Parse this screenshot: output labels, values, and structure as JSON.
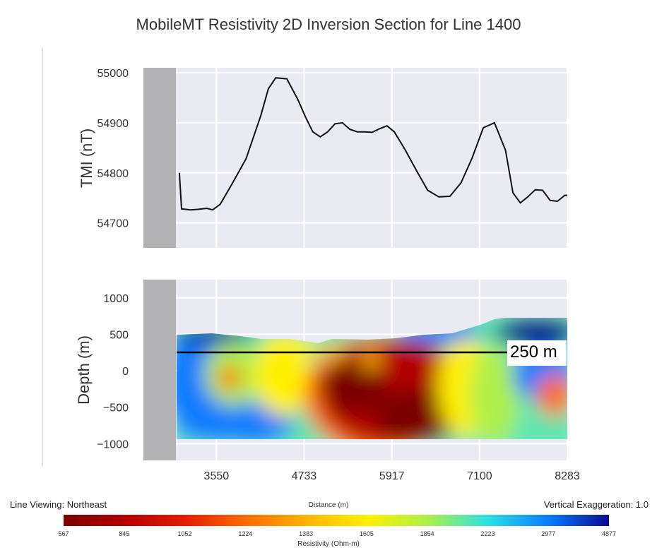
{
  "title": "MobileMT Resistivity 2D Inversion Section for Line 1400",
  "footer": {
    "line_viewing": "Line Viewing: Northeast",
    "distance_label": "Distance (m)",
    "vertical_exaggeration": "Vertical Exaggeration: 1.0"
  },
  "annotation": "250 m",
  "colors": {
    "panel_bg": "#eaeaf2",
    "grid": "#ffffff",
    "gray_block": "#b1b1b4",
    "line": "#111111"
  },
  "chart_data": [
    {
      "type": "line",
      "ylabel": "TMI (nT)",
      "xlabel": "",
      "ylim": [
        54650,
        55010
      ],
      "xlim": [
        2565,
        8283
      ],
      "yticks": [
        55000,
        54900,
        54800,
        54700
      ],
      "grid": true,
      "x": [
        3050,
        3080,
        3200,
        3300,
        3420,
        3500,
        3600,
        3750,
        3950,
        4150,
        4250,
        4350,
        4500,
        4650,
        4750,
        4850,
        4950,
        5050,
        5150,
        5250,
        5350,
        5450,
        5550,
        5650,
        5750,
        5850,
        5950,
        6100,
        6250,
        6400,
        6550,
        6700,
        6850,
        7000,
        7150,
        7300,
        7450,
        7550,
        7650,
        7750,
        7850,
        7950,
        8050,
        8150,
        8250,
        8283
      ],
      "values": [
        54800,
        54728,
        54726,
        54727,
        54729,
        54726,
        54737,
        54775,
        54828,
        54915,
        54968,
        54990,
        54988,
        54946,
        54912,
        54882,
        54872,
        54882,
        54898,
        54900,
        54887,
        54882,
        54882,
        54881,
        54888,
        54894,
        54882,
        54845,
        54804,
        54765,
        54752,
        54753,
        54780,
        54830,
        54890,
        54900,
        54845,
        54760,
        54740,
        54752,
        54766,
        54765,
        54745,
        54743,
        54755,
        54755
      ]
    },
    {
      "type": "heatmap",
      "ylabel": "Depth (m)",
      "xlabel": "Distance (m)",
      "ylim": [
        -1230,
        1250
      ],
      "xlim": [
        2565,
        8283
      ],
      "xticks": [
        "3550",
        "4733",
        "5917",
        "7100",
        "8283"
      ],
      "yticks": [
        "1000",
        "500",
        "0",
        "−500",
        "−1000"
      ],
      "grid": true,
      "reference_depth": 200,
      "colorbar": {
        "title": "Resistivity (Ohm-m)",
        "labels": [
          "567",
          "845",
          "1052",
          "1224",
          "1383",
          "1605",
          "1854",
          "2223",
          "2977",
          "4877"
        ],
        "colors": [
          "#7a0000",
          "#b30000",
          "#e51c00",
          "#ff6a00",
          "#ffb300",
          "#fff000",
          "#aef04a",
          "#2de1e0",
          "#0a7cff",
          "#0a0a8c"
        ]
      }
    }
  ]
}
